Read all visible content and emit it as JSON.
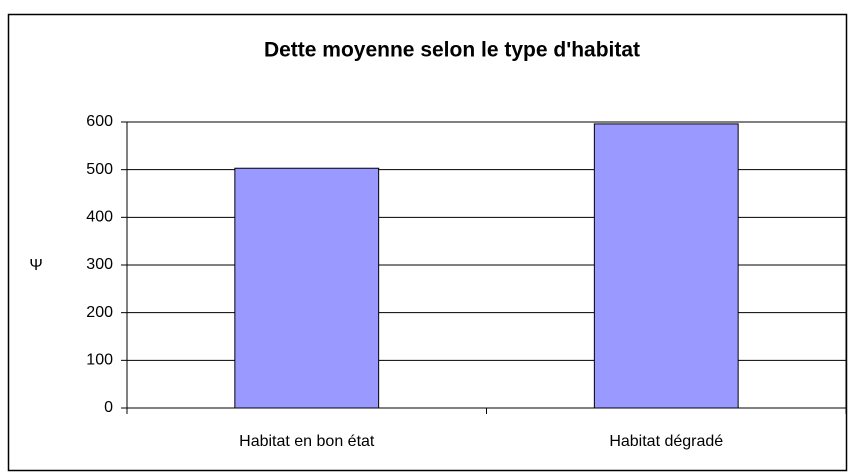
{
  "chart_data": {
    "type": "bar",
    "title": "Dette moyenne selon le type d'habitat",
    "y_label": "Ψ",
    "categories": [
      "Habitat en bon état",
      "Habitat dégradé"
    ],
    "values": [
      503,
      596
    ],
    "color": "#9999ff",
    "ylim": [
      0,
      600
    ],
    "yticks": [
      0,
      100,
      200,
      300,
      400,
      500,
      600
    ],
    "grid": true
  }
}
